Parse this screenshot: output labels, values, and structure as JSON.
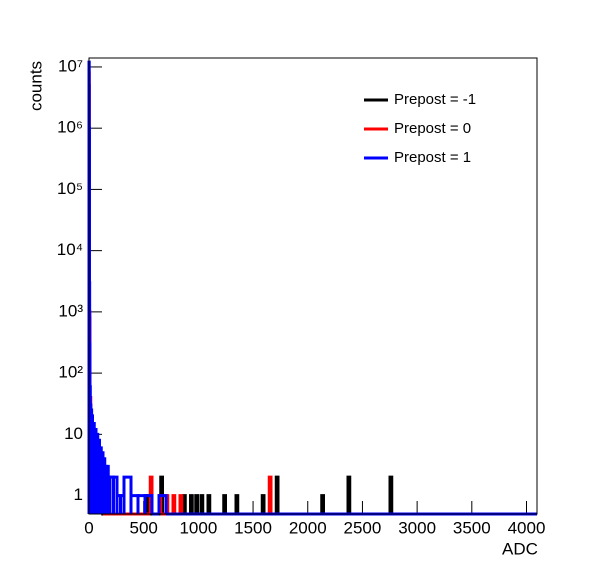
{
  "chart_data": {
    "type": "histogram",
    "x_label": "ADC",
    "y_label": "counts",
    "log_y": true,
    "legend_position": "upper right",
    "xlim": [
      0,
      4096
    ],
    "xticks": [
      0,
      500,
      1000,
      1500,
      2000,
      2500,
      3000,
      3500,
      4000
    ],
    "ylim": [
      0.5,
      14000000
    ],
    "yticks": [
      1,
      10,
      {
        "value": 100,
        "label": "10²"
      },
      {
        "value": 1000,
        "label": "10³"
      },
      {
        "value": 10000,
        "label": "10⁴"
      },
      {
        "value": 100000,
        "label": "10⁵"
      },
      {
        "value": 1000000,
        "label": "10⁶"
      },
      {
        "value": 10000000,
        "label": "10⁷"
      }
    ],
    "series": [
      {
        "name": "Prepost = -1",
        "color": "#000000",
        "bins": [
          0,
          2,
          4,
          8,
          16,
          32,
          64,
          96,
          112,
          528,
          544,
          656,
          672,
          864,
          880,
          928,
          944,
          976,
          992,
          1024,
          1040,
          1088,
          1104,
          1232,
          1248,
          1344,
          1360,
          1584,
          1600,
          1712,
          1728,
          2128,
          2144,
          2368,
          2384,
          2752,
          2768,
          4096
        ],
        "values": [
          5000000,
          300000,
          800,
          30,
          10,
          4,
          2,
          1,
          0,
          1,
          0,
          2,
          0,
          1,
          0,
          1,
          0,
          1,
          0,
          1,
          0,
          1,
          0,
          1,
          0,
          1,
          0,
          1,
          0,
          2,
          0,
          1,
          0,
          2,
          0,
          2,
          0
        ]
      },
      {
        "name": "Prepost = 0",
        "color": "#ff0000",
        "bins": [
          0,
          2,
          4,
          8,
          16,
          32,
          48,
          64,
          96,
          128,
          560,
          576,
          640,
          656,
          704,
          720,
          768,
          784,
          832,
          848,
          1648,
          1664,
          4096
        ],
        "values": [
          8000000,
          500000,
          1000,
          40,
          15,
          8,
          4,
          2,
          1,
          0,
          2,
          0,
          1,
          0,
          1,
          0,
          1,
          0,
          1,
          0,
          2,
          0
        ]
      },
      {
        "name": "Prepost = 1",
        "color": "#0000ff",
        "bins": [
          0,
          2,
          4,
          6,
          8,
          12,
          16,
          24,
          32,
          48,
          64,
          80,
          96,
          112,
          128,
          144,
          160,
          176,
          192,
          224,
          256,
          288,
          320,
          384,
          448,
          512,
          576,
          640,
          704,
          4096
        ],
        "values": [
          12000000,
          1000000,
          3000,
          300,
          60,
          30,
          25,
          20,
          15,
          12,
          10,
          8,
          6,
          5,
          4,
          3,
          3,
          2,
          2,
          2,
          1,
          1,
          2,
          1,
          1,
          1,
          0,
          1,
          0
        ]
      }
    ]
  }
}
